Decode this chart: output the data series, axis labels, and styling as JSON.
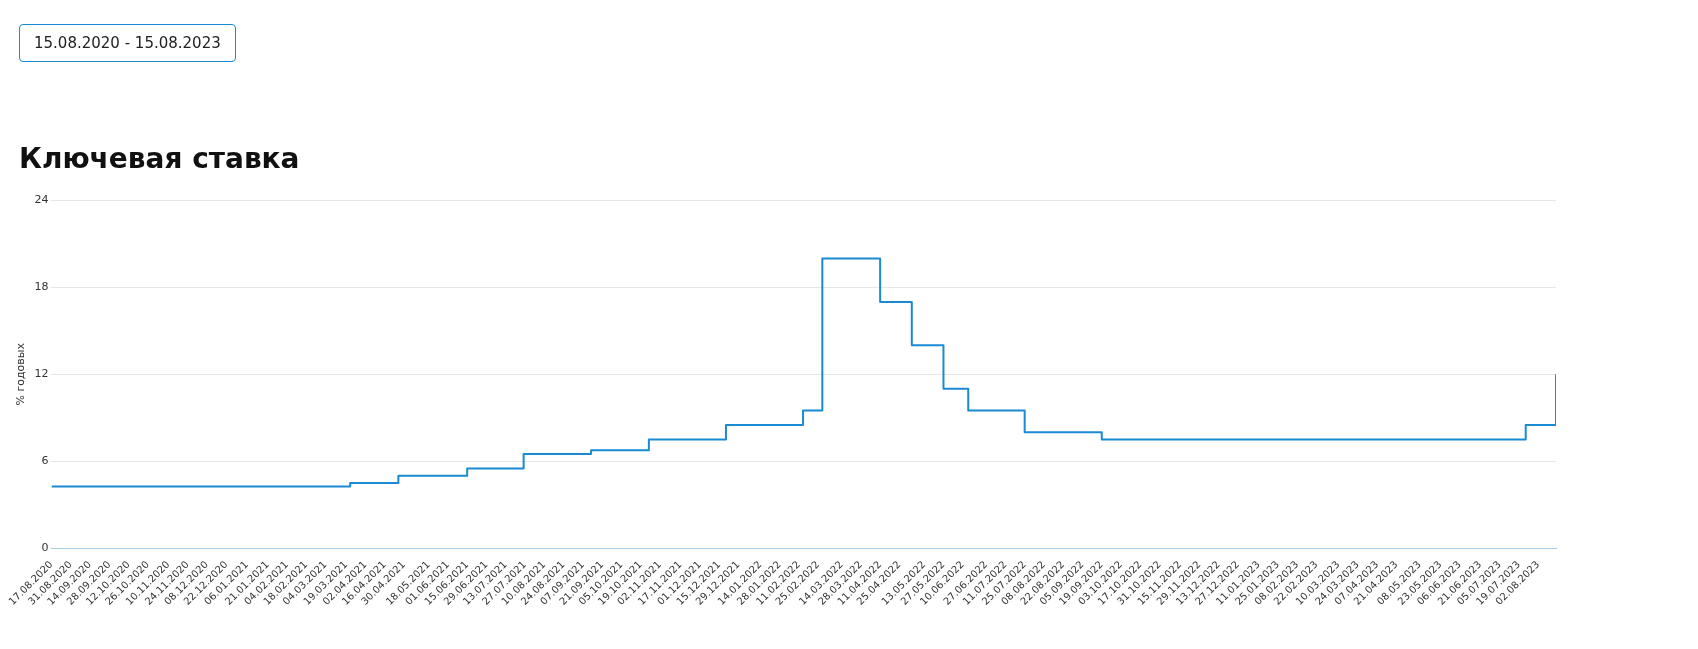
{
  "chart_data": {
    "type": "step",
    "title": "Ключевая ставка",
    "subtitle": "15.08.2020 - 15.08.2023",
    "ylabel": "% годовых",
    "x": [
      "2020-08-17",
      "2021-03-22",
      "2021-04-26",
      "2021-06-15",
      "2021-07-26",
      "2021-09-13",
      "2021-10-25",
      "2021-12-20",
      "2022-02-14",
      "2022-02-28",
      "2022-04-11",
      "2022-05-04",
      "2022-05-27",
      "2022-06-14",
      "2022-07-25",
      "2022-09-19",
      "2023-07-24",
      "2023-08-15"
    ],
    "series": [
      {
        "color": "#1a8ad4",
        "values": [
          4.25,
          4.5,
          5,
          5.5,
          6.5,
          6.75,
          7.5,
          8.5,
          9.5,
          20,
          17,
          14,
          11,
          9.5,
          8,
          7.5,
          8.5,
          12
        ]
      }
    ],
    "xlim": [
      "2020-08-17",
      "2023-08-15"
    ],
    "xticks": [
      {
        "value": "2020-08-17",
        "label": "17.08.2020"
      },
      {
        "value": "2020-08-31",
        "label": "31.08.2020"
      },
      {
        "value": "2020-09-14",
        "label": "14.09.2020"
      },
      {
        "value": "2020-09-28",
        "label": "28.09.2020"
      },
      {
        "value": "2020-10-12",
        "label": "12.10.2020"
      },
      {
        "value": "2020-10-26",
        "label": "26.10.2020"
      },
      {
        "value": "2020-11-10",
        "label": "10.11.2020"
      },
      {
        "value": "2020-11-24",
        "label": "24.11.2020"
      },
      {
        "value": "2020-12-08",
        "label": "08.12.2020"
      },
      {
        "value": "2020-12-22",
        "label": "22.12.2020"
      },
      {
        "value": "2021-01-06",
        "label": "06.01.2021"
      },
      {
        "value": "2021-01-21",
        "label": "21.01.2021"
      },
      {
        "value": "2021-02-04",
        "label": "04.02.2021"
      },
      {
        "value": "2021-02-18",
        "label": "18.02.2021"
      },
      {
        "value": "2021-03-04",
        "label": "04.03.2021"
      },
      {
        "value": "2021-03-19",
        "label": "19.03.2021"
      },
      {
        "value": "2021-04-02",
        "label": "02.04.2021"
      },
      {
        "value": "2021-04-16",
        "label": "16.04.2021"
      },
      {
        "value": "2021-04-30",
        "label": "30.04.2021"
      },
      {
        "value": "2021-05-18",
        "label": "18.05.2021"
      },
      {
        "value": "2021-06-01",
        "label": "01.06.2021"
      },
      {
        "value": "2021-06-15",
        "label": "15.06.2021"
      },
      {
        "value": "2021-06-29",
        "label": "29.06.2021"
      },
      {
        "value": "2021-07-13",
        "label": "13.07.2021"
      },
      {
        "value": "2021-07-27",
        "label": "27.07.2021"
      },
      {
        "value": "2021-08-10",
        "label": "10.08.2021"
      },
      {
        "value": "2021-08-24",
        "label": "24.08.2021"
      },
      {
        "value": "2021-09-07",
        "label": "07.09.2021"
      },
      {
        "value": "2021-09-21",
        "label": "21.09.2021"
      },
      {
        "value": "2021-10-05",
        "label": "05.10.2021"
      },
      {
        "value": "2021-10-19",
        "label": "19.10.2021"
      },
      {
        "value": "2021-11-02",
        "label": "02.11.2021"
      },
      {
        "value": "2021-11-17",
        "label": "17.11.2021"
      },
      {
        "value": "2021-12-01",
        "label": "01.12.2021"
      },
      {
        "value": "2021-12-15",
        "label": "15.12.2021"
      },
      {
        "value": "2021-12-29",
        "label": "29.12.2021"
      },
      {
        "value": "2022-01-14",
        "label": "14.01.2022"
      },
      {
        "value": "2022-01-28",
        "label": "28.01.2022"
      },
      {
        "value": "2022-02-11",
        "label": "11.02.2022"
      },
      {
        "value": "2022-02-25",
        "label": "25.02.2022"
      },
      {
        "value": "2022-03-14",
        "label": "14.03.2022"
      },
      {
        "value": "2022-03-28",
        "label": "28.03.2022"
      },
      {
        "value": "2022-04-11",
        "label": "11.04.2022"
      },
      {
        "value": "2022-04-25",
        "label": "25.04.2022"
      },
      {
        "value": "2022-05-13",
        "label": "13.05.2022"
      },
      {
        "value": "2022-05-27",
        "label": "27.05.2022"
      },
      {
        "value": "2022-06-10",
        "label": "10.06.2022"
      },
      {
        "value": "2022-06-27",
        "label": "27.06.2022"
      },
      {
        "value": "2022-07-11",
        "label": "11.07.2022"
      },
      {
        "value": "2022-07-25",
        "label": "25.07.2022"
      },
      {
        "value": "2022-08-08",
        "label": "08.08.2022"
      },
      {
        "value": "2022-08-22",
        "label": "22.08.2022"
      },
      {
        "value": "2022-09-05",
        "label": "05.09.2022"
      },
      {
        "value": "2022-09-19",
        "label": "19.09.2022"
      },
      {
        "value": "2022-10-03",
        "label": "03.10.2022"
      },
      {
        "value": "2022-10-17",
        "label": "17.10.2022"
      },
      {
        "value": "2022-10-31",
        "label": "31.10.2022"
      },
      {
        "value": "2022-11-15",
        "label": "15.11.2022"
      },
      {
        "value": "2022-11-29",
        "label": "29.11.2022"
      },
      {
        "value": "2022-12-13",
        "label": "13.12.2022"
      },
      {
        "value": "2022-12-27",
        "label": "27.12.2022"
      },
      {
        "value": "2023-01-11",
        "label": "11.01.2023"
      },
      {
        "value": "2023-01-25",
        "label": "25.01.2023"
      },
      {
        "value": "2023-02-08",
        "label": "08.02.2023"
      },
      {
        "value": "2023-02-22",
        "label": "22.02.2023"
      },
      {
        "value": "2023-03-10",
        "label": "10.03.2023"
      },
      {
        "value": "2023-03-24",
        "label": "24.03.2023"
      },
      {
        "value": "2023-04-07",
        "label": "07.04.2023"
      },
      {
        "value": "2023-04-21",
        "label": "21.04.2023"
      },
      {
        "value": "2023-05-08",
        "label": "08.05.2023"
      },
      {
        "value": "2023-05-23",
        "label": "23.05.2023"
      },
      {
        "value": "2023-06-06",
        "label": "06.06.2023"
      },
      {
        "value": "2023-06-21",
        "label": "21.06.2023"
      },
      {
        "value": "2023-07-05",
        "label": "05.07.2023"
      },
      {
        "value": "2023-07-19",
        "label": "19.07.2023"
      },
      {
        "value": "2023-08-02",
        "label": "02.08.2023"
      }
    ],
    "ylim": [
      0,
      24
    ],
    "yticks": [
      0,
      6,
      12,
      18,
      24
    ],
    "grid": "y",
    "marker": "none",
    "line_style": "solid"
  }
}
